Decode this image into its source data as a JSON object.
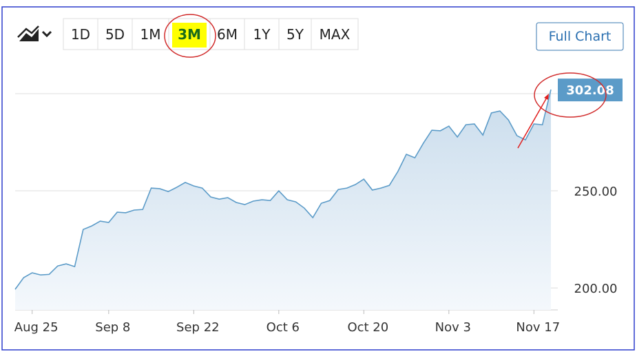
{
  "toolbar": {
    "ranges": [
      "1D",
      "5D",
      "1M",
      "3M",
      "6M",
      "1Y",
      "5Y",
      "MAX"
    ],
    "selected_index": 3,
    "full_chart": "Full Chart"
  },
  "chart_data": {
    "type": "area",
    "categories": [
      null,
      null,
      "Aug 25",
      null,
      null,
      null,
      null,
      null,
      null,
      null,
      null,
      "Sep 8",
      null,
      null,
      null,
      null,
      null,
      null,
      null,
      null,
      null,
      "Sep 22",
      null,
      null,
      null,
      null,
      null,
      null,
      null,
      null,
      null,
      "Oct 6",
      null,
      null,
      null,
      null,
      null,
      null,
      null,
      null,
      null,
      "Oct 20",
      null,
      null,
      null,
      null,
      null,
      null,
      null,
      null,
      null,
      "Nov 3",
      null,
      null,
      null,
      null,
      null,
      null,
      null,
      null,
      null,
      "Nov 17",
      null,
      null
    ],
    "series": [
      {
        "color": "#5b9bc8",
        "values": [
          199.3,
          205.3,
          207.8,
          206.7,
          207,
          211.3,
          212.4,
          211,
          230.1,
          231.9,
          234.4,
          233.7,
          239,
          238.7,
          240.1,
          240.4,
          251.4,
          251.1,
          249.6,
          251.8,
          254.3,
          252.5,
          251.4,
          246.8,
          245.7,
          246.5,
          244,
          242.9,
          244.7,
          245.4,
          245,
          250,
          245.4,
          244.3,
          241.1,
          236.2,
          243.6,
          245,
          250.7,
          251.4,
          253.2,
          256,
          250.4,
          251.4,
          252.8,
          259.9,
          268.8,
          267,
          274.5,
          281.2,
          280.9,
          283.3,
          277.7,
          284,
          284.4,
          278.7,
          290.1,
          291.1,
          286.5,
          278.4,
          276.2,
          284.4,
          284,
          302.08
        ]
      }
    ],
    "last_label": "302.08",
    "ylim": [
      188.7,
      316.3
    ],
    "yticks": [
      {
        "value": 200,
        "label": "200.00"
      },
      {
        "value": 250,
        "label": "250.00"
      },
      {
        "value": 300,
        "label": null
      }
    ],
    "grid": true
  }
}
